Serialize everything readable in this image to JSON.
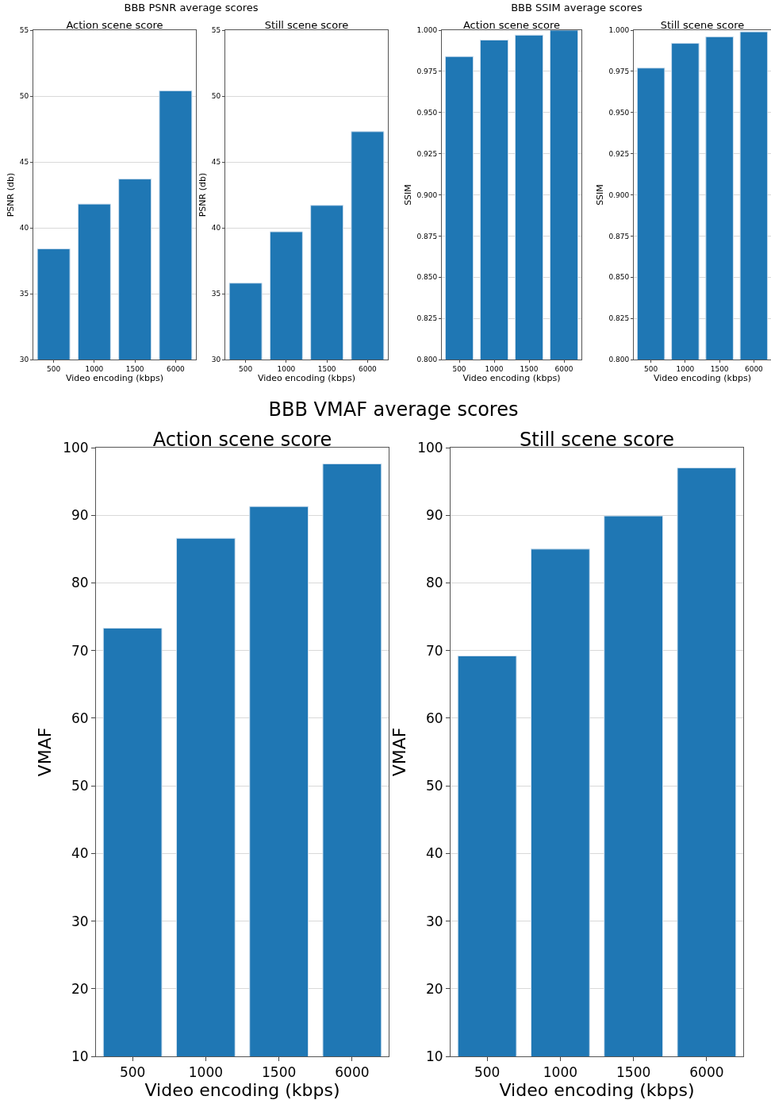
{
  "chart_data": [
    {
      "type": "bar",
      "title": "BBB PSNR average scores",
      "subtitle": "Action scene score",
      "xlabel": "Video encoding (kbps)",
      "ylabel": "PSNR (db)",
      "categories": [
        "500",
        "1000",
        "1500",
        "6000"
      ],
      "values": [
        38.4,
        41.8,
        43.7,
        50.4
      ],
      "color": "#1f77b4",
      "ylim": [
        30,
        55
      ],
      "yticks": [
        30,
        35,
        40,
        45,
        50,
        55
      ],
      "grid": "y"
    },
    {
      "type": "bar",
      "subtitle": "Still scene score",
      "xlabel": "Video encoding (kbps)",
      "ylabel": "PSNR (db)",
      "categories": [
        "500",
        "1000",
        "1500",
        "6000"
      ],
      "values": [
        35.8,
        39.7,
        41.7,
        47.3
      ],
      "color": "#1f77b4",
      "ylim": [
        30,
        55
      ],
      "yticks": [
        30,
        35,
        40,
        45,
        50,
        55
      ],
      "grid": "y"
    },
    {
      "type": "bar",
      "title": "BBB SSIM average scores",
      "subtitle": "Action scene score",
      "xlabel": "Video encoding (kbps)",
      "ylabel": "SSIM",
      "categories": [
        "500",
        "1000",
        "1500",
        "6000"
      ],
      "values": [
        0.984,
        0.994,
        0.997,
        1.0
      ],
      "color": "#1f77b4",
      "ylim": [
        0.8,
        1.0
      ],
      "yticks": [
        {
          "value": 0.8,
          "label": "0.800"
        },
        {
          "value": 0.825,
          "label": "0.825"
        },
        {
          "value": 0.85,
          "label": "0.850"
        },
        {
          "value": 0.875,
          "label": "0.875"
        },
        {
          "value": 0.9,
          "label": "0.900"
        },
        {
          "value": 0.925,
          "label": "0.925"
        },
        {
          "value": 0.95,
          "label": "0.950"
        },
        {
          "value": 0.975,
          "label": "0.975"
        },
        {
          "value": 1.0,
          "label": "1.000"
        }
      ],
      "grid": "y"
    },
    {
      "type": "bar",
      "subtitle": "Still scene score",
      "xlabel": "Video encoding (kbps)",
      "ylabel": "SSIM",
      "categories": [
        "500",
        "1000",
        "1500",
        "6000"
      ],
      "values": [
        0.977,
        0.992,
        0.996,
        0.999
      ],
      "color": "#1f77b4",
      "ylim": [
        0.8,
        1.0
      ],
      "yticks": [
        {
          "value": 0.8,
          "label": "0.800"
        },
        {
          "value": 0.825,
          "label": "0.825"
        },
        {
          "value": 0.85,
          "label": "0.850"
        },
        {
          "value": 0.875,
          "label": "0.875"
        },
        {
          "value": 0.9,
          "label": "0.900"
        },
        {
          "value": 0.925,
          "label": "0.925"
        },
        {
          "value": 0.95,
          "label": "0.950"
        },
        {
          "value": 0.975,
          "label": "0.975"
        },
        {
          "value": 1.0,
          "label": "1.000"
        }
      ],
      "grid": "y"
    },
    {
      "type": "bar",
      "title": "BBB VMAF average scores",
      "subtitle": "Action scene score",
      "xlabel": "Video encoding (kbps)",
      "ylabel": "VMAF",
      "categories": [
        "500",
        "1000",
        "1500",
        "6000"
      ],
      "values": [
        73.3,
        86.6,
        91.3,
        97.6
      ],
      "color": "#1f77b4",
      "ylim": [
        10,
        100
      ],
      "yticks": [
        10,
        20,
        30,
        40,
        50,
        60,
        70,
        80,
        90,
        100
      ],
      "grid": "y"
    },
    {
      "type": "bar",
      "subtitle": "Still scene score",
      "xlabel": "Video encoding (kbps)",
      "ylabel": "VMAF",
      "categories": [
        "500",
        "1000",
        "1500",
        "6000"
      ],
      "values": [
        69.2,
        85.0,
        89.9,
        97.0
      ],
      "color": "#1f77b4",
      "ylim": [
        10,
        100
      ],
      "yticks": [
        10,
        20,
        30,
        40,
        50,
        60,
        70,
        80,
        90,
        100
      ],
      "grid": "y"
    }
  ]
}
